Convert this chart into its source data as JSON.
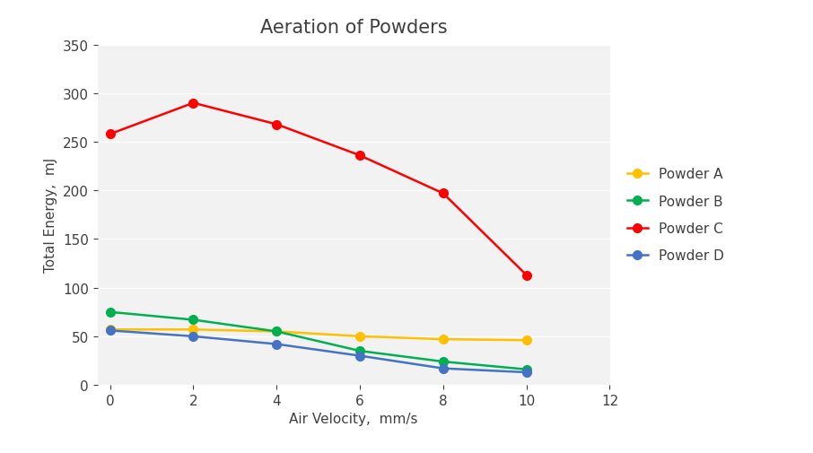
{
  "title": "Aeration of Powders",
  "xlabel": "Air Velocity,  mm/s",
  "ylabel": "Total Energy,  mJ",
  "xlim": [
    -0.3,
    12
  ],
  "ylim": [
    0,
    350
  ],
  "xticks": [
    0,
    2,
    4,
    6,
    8,
    10,
    12
  ],
  "yticks": [
    0,
    50,
    100,
    150,
    200,
    250,
    300,
    350
  ],
  "series": [
    {
      "label": "Powder A",
      "x": [
        0,
        2,
        4,
        6,
        8,
        10
      ],
      "y": [
        57,
        57,
        55,
        50,
        47,
        46
      ],
      "color": "#FFC000",
      "marker": "o",
      "markersize": 7,
      "linewidth": 1.8
    },
    {
      "label": "Powder B",
      "x": [
        0,
        2,
        4,
        6,
        8,
        10
      ],
      "y": [
        75,
        67,
        55,
        35,
        24,
        16
      ],
      "color": "#00B050",
      "marker": "o",
      "markersize": 7,
      "linewidth": 1.8
    },
    {
      "label": "Powder C",
      "x": [
        0,
        2,
        4,
        6,
        8,
        10
      ],
      "y": [
        258,
        290,
        268,
        236,
        197,
        113
      ],
      "color": "#FF0000",
      "marker": "o",
      "markersize": 7,
      "linewidth": 1.8
    },
    {
      "label": "Powder D",
      "x": [
        0,
        2,
        4,
        6,
        8,
        10
      ],
      "y": [
        56,
        50,
        42,
        30,
        17,
        13
      ],
      "color": "#4472C4",
      "marker": "o",
      "markersize": 7,
      "linewidth": 1.8
    }
  ],
  "figure_bg": "#FFFFFF",
  "plot_bg": "#F2F2F2",
  "grid_color": "#FFFFFF",
  "title_fontsize": 15,
  "title_color": "#404040",
  "axis_label_fontsize": 11,
  "axis_label_color": "#404040",
  "tick_fontsize": 11,
  "tick_color": "#404040",
  "legend_fontsize": 11,
  "legend_color": "#404040"
}
